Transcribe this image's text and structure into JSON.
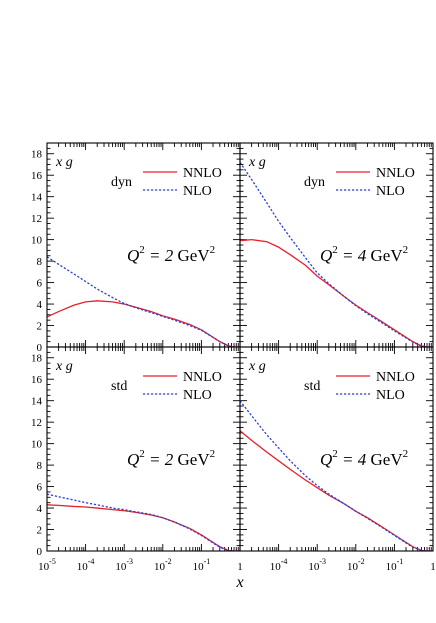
{
  "chart_data": {
    "type": "line",
    "layout": "2x2 grid, shared x axis, shared y axis",
    "x_axis": {
      "label": "x",
      "scale": "log",
      "range": [
        1e-05,
        1
      ],
      "tick_labels": [
        {
          "value": 1e-05,
          "base": "10",
          "exp": "-5"
        },
        {
          "value": 0.0001,
          "base": "10",
          "exp": "-4"
        },
        {
          "value": 0.001,
          "base": "10",
          "exp": "-3"
        },
        {
          "value": 0.01,
          "base": "10",
          "exp": "-2"
        },
        {
          "value": 0.1,
          "base": "10",
          "exp": "-1"
        },
        {
          "value": 1,
          "base": "1",
          "exp": ""
        }
      ]
    },
    "y_axis": {
      "scale": "linear",
      "range": [
        0,
        19
      ],
      "tick_labels": [
        "0",
        "2",
        "4",
        "6",
        "8",
        "10",
        "12",
        "14",
        "16",
        "18"
      ]
    },
    "grid": false,
    "legend_placement": "top-right",
    "series_styles": {
      "NNLO": {
        "color": "#e8202a",
        "dash": "solid"
      },
      "NLO": {
        "color": "#2b3fd6",
        "dash": "dotted"
      }
    },
    "panels": [
      {
        "id": "dyn-q2",
        "ylabel": "x g",
        "scheme": "dyn",
        "q2_text": {
          "sym": "Q",
          "sup": "2",
          "eq": "= 2",
          "unit": "GeV",
          "unit_sup": "2"
        },
        "series": [
          {
            "name": "NNLO",
            "x": [
              1e-05,
              2e-05,
              5e-05,
              0.0001,
              0.0002,
              0.0005,
              0.001,
              0.002,
              0.005,
              0.01,
              0.02,
              0.05,
              0.1,
              0.2,
              0.3,
              0.5,
              0.7,
              1
            ],
            "y": [
              2.8,
              3.3,
              3.9,
              4.2,
              4.3,
              4.2,
              4.0,
              3.7,
              3.3,
              2.9,
              2.6,
              2.1,
              1.6,
              0.9,
              0.5,
              0.1,
              0.0,
              0.0
            ]
          },
          {
            "name": "NLO",
            "x": [
              1e-05,
              2e-05,
              5e-05,
              0.0001,
              0.0002,
              0.0005,
              0.001,
              0.002,
              0.005,
              0.01,
              0.02,
              0.05,
              0.1,
              0.2,
              0.3,
              0.5,
              0.7,
              1
            ],
            "y": [
              8.4,
              7.7,
              6.8,
              6.1,
              5.4,
              4.6,
              4.05,
              3.65,
              3.2,
              2.85,
              2.5,
              2.0,
              1.55,
              0.9,
              0.5,
              0.1,
              0.0,
              0.0
            ]
          }
        ]
      },
      {
        "id": "dyn-q4",
        "ylabel": "x g",
        "scheme": "dyn",
        "q2_text": {
          "sym": "Q",
          "sup": "2",
          "eq": "= 4",
          "unit": "GeV",
          "unit_sup": "2"
        },
        "series": [
          {
            "name": "NNLO",
            "x": [
              1e-05,
              2e-05,
              5e-05,
              0.0001,
              0.0002,
              0.0005,
              0.001,
              0.002,
              0.005,
              0.01,
              0.02,
              0.05,
              0.1,
              0.2,
              0.3,
              0.5,
              0.7,
              1
            ],
            "y": [
              9.9,
              10.0,
              9.8,
              9.3,
              8.6,
              7.6,
              6.6,
              5.8,
              4.7,
              3.9,
              3.2,
              2.3,
              1.6,
              0.9,
              0.5,
              0.1,
              0.0,
              0.0
            ]
          },
          {
            "name": "NLO",
            "x": [
              1e-05,
              2e-05,
              5e-05,
              0.0001,
              0.0002,
              0.0005,
              0.001,
              0.002,
              0.005,
              0.01,
              0.02,
              0.05,
              0.1,
              0.2,
              0.3,
              0.5,
              0.7,
              1
            ],
            "y": [
              17.2,
              15.6,
              13.4,
              11.7,
              10.2,
              8.3,
              6.9,
              5.9,
              4.7,
              3.85,
              3.1,
              2.2,
              1.5,
              0.85,
              0.45,
              0.1,
              0.0,
              0.0
            ]
          }
        ]
      },
      {
        "id": "std-q2",
        "ylabel": "x g",
        "scheme": "std",
        "q2_text": {
          "sym": "Q",
          "sup": "2",
          "eq": "= 2",
          "unit": "GeV",
          "unit_sup": "2"
        },
        "series": [
          {
            "name": "NNLO",
            "x": [
              1e-05,
              2e-05,
              5e-05,
              0.0001,
              0.0002,
              0.0005,
              0.001,
              0.002,
              0.005,
              0.01,
              0.02,
              0.05,
              0.1,
              0.2,
              0.3,
              0.5,
              0.7,
              1
            ],
            "y": [
              4.3,
              4.25,
              4.15,
              4.1,
              4.0,
              3.85,
              3.75,
              3.6,
              3.35,
              3.1,
              2.7,
              2.1,
              1.5,
              0.8,
              0.4,
              0.05,
              0.0,
              0.0
            ]
          },
          {
            "name": "NLO",
            "x": [
              1e-05,
              2e-05,
              5e-05,
              0.0001,
              0.0002,
              0.0005,
              0.001,
              0.002,
              0.005,
              0.01,
              0.02,
              0.05,
              0.1,
              0.2,
              0.3,
              0.5,
              0.7,
              1
            ],
            "y": [
              5.3,
              5.05,
              4.75,
              4.5,
              4.3,
              4.0,
              3.85,
              3.65,
              3.4,
              3.1,
              2.7,
              2.05,
              1.45,
              0.75,
              0.35,
              0.05,
              0.0,
              0.0
            ]
          }
        ]
      },
      {
        "id": "std-q4",
        "ylabel": "x g",
        "scheme": "std",
        "q2_text": {
          "sym": "Q",
          "sup": "2",
          "eq": "= 4",
          "unit": "GeV",
          "unit_sup": "2"
        },
        "series": [
          {
            "name": "NNLO",
            "x": [
              1e-05,
              2e-05,
              5e-05,
              0.0001,
              0.0002,
              0.0005,
              0.001,
              0.002,
              0.005,
              0.01,
              0.02,
              0.05,
              0.1,
              0.2,
              0.3,
              0.5,
              0.7,
              1
            ],
            "y": [
              11.2,
              10.3,
              9.2,
              8.4,
              7.6,
              6.6,
              5.9,
              5.2,
              4.4,
              3.7,
              3.1,
              2.2,
              1.5,
              0.8,
              0.4,
              0.05,
              0.0,
              0.0
            ]
          },
          {
            "name": "NLO",
            "x": [
              1e-05,
              2e-05,
              5e-05,
              0.0001,
              0.0002,
              0.0005,
              0.001,
              0.002,
              0.005,
              0.01,
              0.02,
              0.05,
              0.1,
              0.2,
              0.3,
              0.5,
              0.7,
              1
            ],
            "y": [
              14.0,
              12.6,
              10.8,
              9.6,
              8.4,
              7.0,
              6.1,
              5.3,
              4.4,
              3.7,
              3.05,
              2.15,
              1.45,
              0.75,
              0.35,
              0.05,
              0.0,
              0.0
            ]
          }
        ]
      }
    ]
  }
}
